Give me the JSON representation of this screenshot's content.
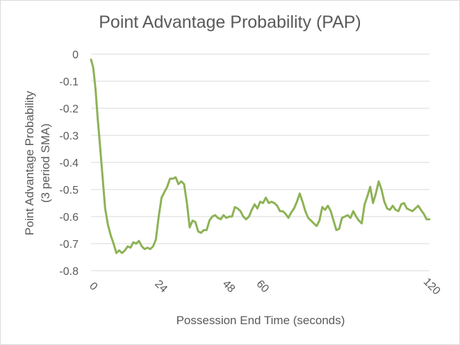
{
  "chart_data": {
    "type": "line",
    "title": "Point Advantage Probability (PAP)",
    "xlabel": "Possession End Time (seconds)",
    "ylabel_lines": [
      "Point Advantage Probability",
      "(3 period SMA)"
    ],
    "xlim": [
      0,
      120
    ],
    "ylim": [
      -0.8,
      0
    ],
    "y_ticks": [
      "0",
      "-0.1",
      "-0.2",
      "-0.3",
      "-0.4",
      "-0.5",
      "-0.6",
      "-0.7",
      "-0.8"
    ],
    "y_tick_values": [
      0,
      -0.1,
      -0.2,
      -0.3,
      -0.4,
      -0.5,
      -0.6,
      -0.7,
      -0.8
    ],
    "x_ticks": [
      "0",
      "24",
      "48",
      "60",
      "120"
    ],
    "x_tick_values": [
      0,
      24,
      48,
      60,
      120
    ],
    "grid": true,
    "legend": "none",
    "series": [
      {
        "color": "#8db255",
        "x": [
          0,
          0.8,
          1.6,
          2.4,
          3.2,
          4,
          5,
          6,
          7,
          8,
          9,
          10,
          11,
          12,
          13,
          14,
          15,
          16,
          17,
          18,
          19,
          20,
          21,
          22,
          23,
          24,
          25,
          26,
          27,
          28,
          29,
          30,
          31,
          32,
          33,
          34,
          35,
          36,
          37,
          38,
          39,
          40,
          41,
          42,
          43,
          44,
          45,
          46,
          47,
          48,
          49,
          50,
          51,
          52,
          53,
          54,
          55,
          56,
          57,
          58,
          59,
          60,
          61,
          62,
          63,
          64,
          65,
          66,
          67,
          68,
          69,
          70,
          71,
          72,
          73,
          74,
          75,
          76,
          77,
          78,
          79,
          80,
          81,
          82,
          83,
          84,
          85,
          86,
          87,
          88,
          89,
          90,
          91,
          92,
          93,
          94,
          95,
          96,
          97,
          98,
          99,
          100,
          101,
          102,
          103,
          104,
          105,
          106,
          107,
          108,
          109,
          110,
          111,
          112,
          113,
          114,
          115,
          116,
          117,
          118,
          119,
          120
        ],
        "values": [
          -0.02,
          -0.05,
          -0.13,
          -0.24,
          -0.34,
          -0.44,
          -0.57,
          -0.63,
          -0.67,
          -0.7,
          -0.735,
          -0.725,
          -0.735,
          -0.725,
          -0.71,
          -0.715,
          -0.695,
          -0.7,
          -0.69,
          -0.71,
          -0.72,
          -0.715,
          -0.72,
          -0.71,
          -0.685,
          -0.6,
          -0.53,
          -0.51,
          -0.49,
          -0.46,
          -0.46,
          -0.455,
          -0.48,
          -0.47,
          -0.48,
          -0.55,
          -0.64,
          -0.615,
          -0.62,
          -0.655,
          -0.66,
          -0.65,
          -0.65,
          -0.615,
          -0.6,
          -0.595,
          -0.605,
          -0.61,
          -0.595,
          -0.605,
          -0.6,
          -0.6,
          -0.565,
          -0.57,
          -0.58,
          -0.6,
          -0.61,
          -0.6,
          -0.575,
          -0.555,
          -0.57,
          -0.545,
          -0.55,
          -0.53,
          -0.55,
          -0.545,
          -0.55,
          -0.56,
          -0.58,
          -0.58,
          -0.59,
          -0.605,
          -0.585,
          -0.57,
          -0.545,
          -0.515,
          -0.545,
          -0.58,
          -0.605,
          -0.615,
          -0.625,
          -0.635,
          -0.615,
          -0.565,
          -0.575,
          -0.56,
          -0.58,
          -0.615,
          -0.65,
          -0.645,
          -0.605,
          -0.6,
          -0.595,
          -0.605,
          -0.58,
          -0.6,
          -0.615,
          -0.625,
          -0.555,
          -0.525,
          -0.49,
          -0.55,
          -0.515,
          -0.47,
          -0.5,
          -0.545,
          -0.57,
          -0.575,
          -0.56,
          -0.575,
          -0.58,
          -0.555,
          -0.55,
          -0.57,
          -0.575,
          -0.58,
          -0.57,
          -0.56,
          -0.575,
          -0.59,
          -0.61,
          -0.61
        ]
      }
    ]
  }
}
